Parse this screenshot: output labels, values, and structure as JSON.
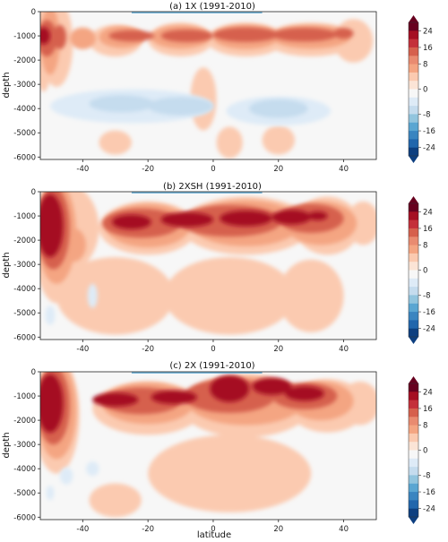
{
  "colorbar": {
    "ticks": [
      24,
      16,
      8,
      0,
      -8,
      -16,
      -24
    ],
    "colors": [
      "#67001f",
      "#a50f23",
      "#c4303a",
      "#d6604d",
      "#e98b70",
      "#f4a582",
      "#fbcab0",
      "#fbe4d6",
      "#f7f7f7",
      "#deebf7",
      "#c5dcee",
      "#92c5de",
      "#5aa6d2",
      "#3a85c0",
      "#2166ac",
      "#0d3f80"
    ],
    "levels": [
      28,
      24,
      20,
      16,
      12,
      8,
      4,
      2,
      -2,
      -4,
      -8,
      -12,
      -16,
      -20,
      -24,
      -28
    ]
  },
  "chart_data": [
    {
      "type": "heatmap",
      "title": "(a) 1X (1991-2010)",
      "xlabel": "",
      "ylabel": "depth",
      "xlim": [
        -53,
        50
      ],
      "ylim": [
        -6100,
        0
      ],
      "x_ticks": [
        "-40",
        "-20",
        "0",
        "20",
        "40"
      ],
      "y_ticks": [
        "0",
        "-1000",
        "-2000",
        "-3000",
        "-4000",
        "-5000",
        "-6000"
      ],
      "levels": [
        {
          "value": 4,
          "blobs": [
            [
              -52,
              -1300,
              3,
              2000
            ],
            [
              -48,
              -1300,
              5,
              1800
            ],
            [
              -30,
              -1200,
              8,
              650
            ],
            [
              -10,
              -1150,
              10,
              700
            ],
            [
              10,
              -1150,
              12,
              700
            ],
            [
              30,
              -1150,
              14,
              700
            ],
            [
              43,
              -1200,
              6,
              900
            ],
            [
              -3,
              -3600,
              4,
              1300
            ],
            [
              5,
              -5400,
              4,
              650
            ],
            [
              -30,
              -5400,
              5,
              500
            ],
            [
              20,
              -5300,
              5,
              600
            ]
          ]
        },
        {
          "value": 8,
          "blobs": [
            [
              -50,
              -1200,
              3,
              1400
            ],
            [
              -40,
              -1100,
              4,
              450
            ],
            [
              -28,
              -1050,
              7,
              450
            ],
            [
              -10,
              -1050,
              9,
              480
            ],
            [
              10,
              -1050,
              10,
              500
            ],
            [
              30,
              -1050,
              12,
              480
            ]
          ]
        },
        {
          "value": 16,
          "blobs": [
            [
              -51,
              -1100,
              3,
              750
            ],
            [
              -47,
              -1050,
              2,
              500
            ],
            [
              -25,
              -1000,
              7,
              230
            ],
            [
              -8,
              -1000,
              8,
              260
            ],
            [
              10,
              -950,
              10,
              300
            ],
            [
              28,
              -950,
              10,
              280
            ],
            [
              40,
              -900,
              3,
              220
            ]
          ]
        },
        {
          "value": 24,
          "blobs": [
            [
              -52,
              -1000,
              2,
              350
            ]
          ]
        },
        {
          "value": -4,
          "blobs": [
            [
              -25,
              -3900,
              25,
              700
            ],
            [
              20,
              -4100,
              16,
              600
            ]
          ]
        },
        {
          "value": -8,
          "blobs": [
            [
              -28,
              -3800,
              10,
              350
            ],
            [
              -10,
              -3900,
              10,
              380
            ],
            [
              20,
              -4000,
              9,
              380
            ]
          ]
        }
      ]
    },
    {
      "type": "heatmap",
      "title": "(b) 2XSH (1991-2010)",
      "xlabel": "",
      "ylabel": "depth",
      "xlim": [
        -53,
        50
      ],
      "ylim": [
        -6100,
        0
      ],
      "x_ticks": [
        "-40",
        "-20",
        "0",
        "20",
        "40"
      ],
      "y_ticks": [
        "0",
        "-1000",
        "-2000",
        "-3000",
        "-4000",
        "-5000",
        "-6000"
      ],
      "levels": [
        {
          "value": 4,
          "blobs": [
            [
              -48,
              -2000,
              7,
              2600
            ],
            [
              -45,
              -1500,
              10,
              1800
            ],
            [
              -20,
              -1500,
              15,
              1100
            ],
            [
              10,
              -1400,
              20,
              1200
            ],
            [
              35,
              -1400,
              10,
              1200
            ],
            [
              46,
              -1300,
              5,
              900
            ],
            [
              -30,
              -4300,
              18,
              1600
            ],
            [
              5,
              -4300,
              20,
              1600
            ],
            [
              30,
              -4300,
              10,
              1500
            ]
          ]
        },
        {
          "value": 8,
          "blobs": [
            [
              -48,
              -1700,
              6,
              2100
            ],
            [
              -20,
              -1400,
              13,
              900
            ],
            [
              10,
              -1300,
              17,
              950
            ],
            [
              33,
              -1300,
              11,
              900
            ],
            [
              -43,
              -2200,
              4,
              700
            ]
          ]
        },
        {
          "value": 16,
          "blobs": [
            [
              -49,
              -1500,
              5,
              1700
            ],
            [
              -22,
              -1300,
              12,
              600
            ],
            [
              5,
              -1200,
              16,
              650
            ],
            [
              30,
              -1100,
              10,
              600
            ]
          ]
        },
        {
          "value": 24,
          "blobs": [
            [
              -50,
              -1400,
              4,
              1300
            ],
            [
              -25,
              -1250,
              6,
              300
            ],
            [
              -8,
              -1150,
              8,
              300
            ],
            [
              10,
              -1100,
              8,
              320
            ],
            [
              24,
              -1050,
              6,
              300
            ],
            [
              32,
              -1000,
              3,
              180
            ]
          ]
        },
        {
          "value": -4,
          "blobs": [
            [
              -37,
              -4300,
              1.5,
              500
            ],
            [
              -50,
              -5100,
              1.5,
              400
            ]
          ]
        }
      ]
    },
    {
      "type": "heatmap",
      "title": "(c) 2X (1991-2010)",
      "xlabel": "latitude",
      "ylabel": "depth",
      "xlim": [
        -53,
        50
      ],
      "ylim": [
        -6100,
        0
      ],
      "x_ticks": [
        "-40",
        "-20",
        "0",
        "20",
        "40"
      ],
      "y_ticks": [
        "0",
        "-1000",
        "-2000",
        "-3000",
        "-4000",
        "-5000",
        "-6000"
      ],
      "levels": [
        {
          "value": 4,
          "blobs": [
            [
              -48,
              -1800,
              7,
              2400
            ],
            [
              -20,
              -1500,
              17,
              1100
            ],
            [
              10,
              -1400,
              20,
              1300
            ],
            [
              35,
              -1400,
              12,
              1100
            ],
            [
              45,
              -1300,
              6,
              900
            ],
            [
              5,
              -4200,
              25,
              1600
            ],
            [
              -30,
              -5300,
              8,
              700
            ]
          ]
        },
        {
          "value": 8,
          "blobs": [
            [
              -48,
              -1600,
              6,
              2000
            ],
            [
              -20,
              -1300,
              14,
              850
            ],
            [
              10,
              -1200,
              18,
              1000
            ],
            [
              33,
              -1200,
              10,
              800
            ]
          ]
        },
        {
          "value": 16,
          "blobs": [
            [
              -49,
              -1400,
              5,
              1600
            ],
            [
              -22,
              -1200,
              12,
              550
            ],
            [
              5,
              -1000,
              14,
              700
            ],
            [
              28,
              -1000,
              10,
              550
            ]
          ]
        },
        {
          "value": 24,
          "blobs": [
            [
              -50,
              -1300,
              4,
              1200
            ],
            [
              -30,
              -1150,
              7,
              280
            ],
            [
              -12,
              -1050,
              7,
              280
            ],
            [
              5,
              -700,
              6,
              550
            ],
            [
              18,
              -600,
              6,
              350
            ],
            [
              28,
              -900,
              6,
              300
            ]
          ]
        },
        {
          "value": -4,
          "blobs": [
            [
              -45,
              -4300,
              2,
              350
            ],
            [
              -37,
              -4000,
              2,
              300
            ],
            [
              -50,
              -5000,
              1.2,
              300
            ]
          ]
        }
      ]
    }
  ]
}
